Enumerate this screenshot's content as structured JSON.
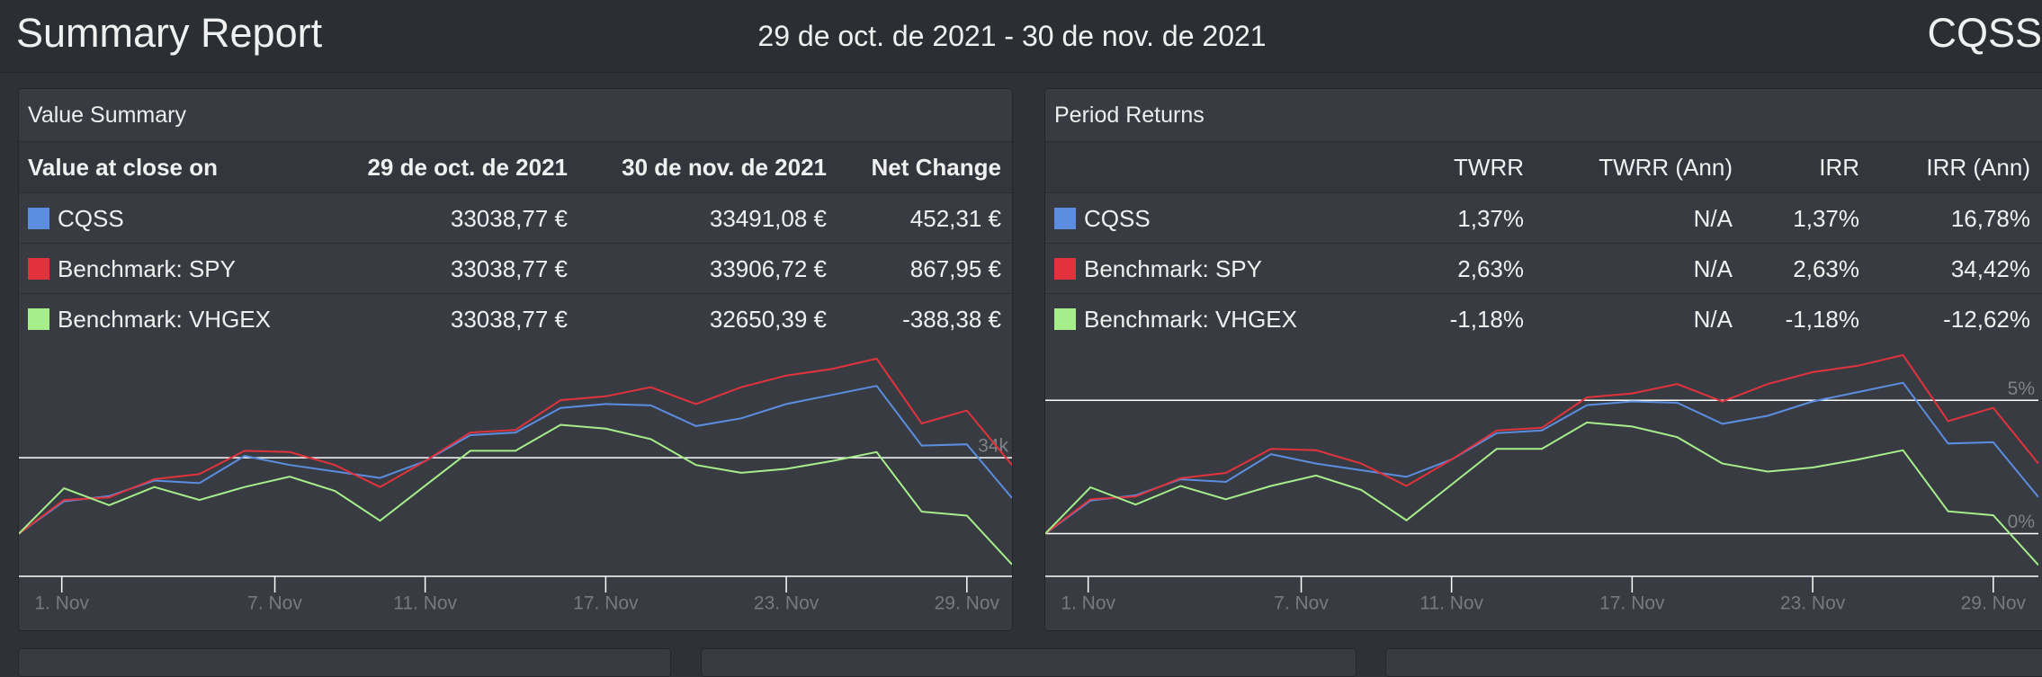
{
  "header": {
    "title": "Summary Report",
    "date_range": "29 de oct. de 2021 - 30 de nov. de 2021",
    "account": "CQSS"
  },
  "value_summary": {
    "title": "Value Summary",
    "columns": [
      "Value at close on",
      "29 de oct. de 2021",
      "30 de nov. de 2021",
      "Net Change"
    ],
    "rows": [
      [
        "CQSS",
        "33038,77 €",
        "33491,08 €",
        "452,31 €"
      ],
      [
        "Benchmark: SPY",
        "33038,77 €",
        "33906,72 €",
        "867,95 €"
      ],
      [
        "Benchmark: VHGEX",
        "33038,77 €",
        "32650,39 €",
        "-388,38 €"
      ]
    ]
  },
  "period_returns": {
    "title": "Period Returns",
    "columns": [
      "TWRR",
      "TWRR (Ann)",
      "IRR",
      "IRR (Ann)"
    ],
    "rows": [
      [
        "CQSS",
        "1,37%",
        "N/A",
        "1,37%",
        "16,78%"
      ],
      [
        "Benchmark: SPY",
        "2,63%",
        "N/A",
        "2,63%",
        "34,42%"
      ],
      [
        "Benchmark: VHGEX",
        "-1,18%",
        "N/A",
        "-1,18%",
        "-12,62%"
      ]
    ]
  },
  "chart_data": [
    {
      "type": "line",
      "x": [
        0,
        1,
        2,
        3,
        4,
        5,
        6,
        7,
        8,
        9,
        10,
        11,
        12,
        13,
        14,
        15,
        16,
        17,
        18,
        19,
        20,
        21,
        22
      ],
      "xlim": [
        0,
        22
      ],
      "xticks": [
        {
          "value": 0.95,
          "label": "1. Nov"
        },
        {
          "value": 5.67,
          "label": "7. Nov"
        },
        {
          "value": 9,
          "label": "11. Nov"
        },
        {
          "value": 13,
          "label": "17. Nov"
        },
        {
          "value": 17,
          "label": "23. Nov"
        },
        {
          "value": 21,
          "label": "29. Nov"
        }
      ],
      "ylim": [
        32500,
        35400
      ],
      "yticks": [
        {
          "value": 34000,
          "label": "34k"
        }
      ],
      "grid": true,
      "series": [
        {
          "color": "#5b8de0",
          "values": [
            33039,
            33449,
            33514,
            33711,
            33678,
            34023,
            33908,
            33826,
            33744,
            33957,
            34285,
            34318,
            34630,
            34679,
            34662,
            34400,
            34498,
            34679,
            34794,
            34909,
            34154,
            34170,
            33491
          ]
        },
        {
          "color": "#e2323c",
          "values": [
            33039,
            33465,
            33498,
            33728,
            33793,
            34088,
            34072,
            33908,
            33629,
            33957,
            34318,
            34351,
            34728,
            34777,
            34892,
            34679,
            34892,
            35039,
            35121,
            35253,
            34433,
            34597,
            33907
          ]
        },
        {
          "color": "#a6ee8a",
          "values": [
            33039,
            33613,
            33400,
            33629,
            33465,
            33629,
            33760,
            33580,
            33203,
            33646,
            34088,
            34088,
            34416,
            34367,
            34236,
            33908,
            33809,
            33859,
            33957,
            34072,
            33318,
            33268,
            32650
          ]
        }
      ]
    },
    {
      "type": "line",
      "x": [
        0,
        1,
        2,
        3,
        4,
        5,
        6,
        7,
        8,
        9,
        10,
        11,
        12,
        13,
        14,
        15,
        16,
        17,
        18,
        19,
        20,
        21,
        22
      ],
      "xlim": [
        0,
        22
      ],
      "xticks": [
        {
          "value": 0.95,
          "label": "1. Nov"
        },
        {
          "value": 5.67,
          "label": "7. Nov"
        },
        {
          "value": 9,
          "label": "11. Nov"
        },
        {
          "value": 13,
          "label": "17. Nov"
        },
        {
          "value": 17,
          "label": "23. Nov"
        },
        {
          "value": 21,
          "label": "29. Nov"
        }
      ],
      "ylim": [
        -1.6,
        7
      ],
      "yticks": [
        {
          "value": 0,
          "label": "0%"
        },
        {
          "value": 5,
          "label": "5%"
        }
      ],
      "grid": true,
      "series": [
        {
          "color": "#5b8de0",
          "values": [
            0,
            1.24,
            1.44,
            2.04,
            1.94,
            2.98,
            2.63,
            2.38,
            2.13,
            2.78,
            3.77,
            3.87,
            4.82,
            4.96,
            4.91,
            4.12,
            4.42,
            4.96,
            5.31,
            5.66,
            3.38,
            3.43,
            1.37
          ]
        },
        {
          "color": "#e2323c",
          "values": [
            0,
            1.29,
            1.39,
            2.08,
            2.28,
            3.18,
            3.13,
            2.63,
            1.79,
            2.78,
            3.87,
            3.97,
            5.11,
            5.26,
            5.61,
            4.96,
            5.61,
            6.06,
            6.3,
            6.7,
            4.22,
            4.72,
            2.63
          ]
        },
        {
          "color": "#a6ee8a",
          "values": [
            0,
            1.74,
            1.09,
            1.79,
            1.29,
            1.79,
            2.18,
            1.64,
            0.5,
            1.84,
            3.18,
            3.18,
            4.17,
            4.02,
            3.62,
            2.63,
            2.33,
            2.48,
            2.78,
            3.13,
            0.84,
            0.69,
            -1.18
          ]
        }
      ]
    }
  ]
}
